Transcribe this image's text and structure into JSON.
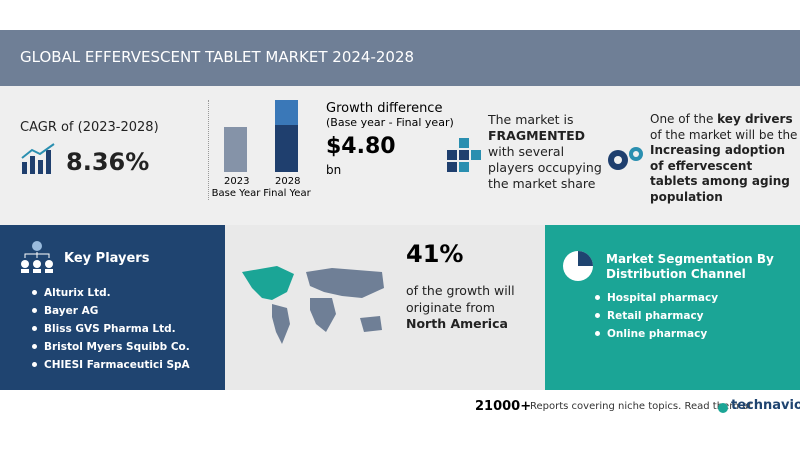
{
  "header": {
    "title": "GLOBAL EFFERVESCENT TABLET MARKET 2024-2028"
  },
  "cagr": {
    "label": "CAGR of (2023-2028)",
    "value": "8.36%"
  },
  "growth": {
    "base_year": "2023",
    "base_label": "Base Year",
    "final_year": "2028",
    "final_label": "Final Year",
    "title": "Growth difference",
    "subtitle": "(Base year - Final year)",
    "value": "$4.80",
    "unit": "bn"
  },
  "market": {
    "lines": [
      "The market is",
      "FRAGMENTED",
      "with several",
      "players occupying",
      "the market share"
    ]
  },
  "drivers": {
    "lines": [
      "One of the ",
      "key drivers",
      "of the market will be the",
      "Increasing adoption",
      "of effervescent",
      "tablets among aging",
      "population"
    ]
  },
  "key_players": {
    "title": "Key Players",
    "items": [
      "Alturix Ltd.",
      "Bayer AG",
      "Bliss GVS Pharma Ltd.",
      "Bristol Myers Squibb Co.",
      "CHIESI Farmaceutici SpA"
    ]
  },
  "region": {
    "share": "41%",
    "lines": [
      "of the growth will",
      "originate from",
      "North America"
    ]
  },
  "segmentation": {
    "title_lines": [
      "Market Segmentation By",
      "Distribution Channel"
    ],
    "items": [
      "Hospital pharmacy",
      "Retail pharmacy",
      "Online pharmacy"
    ]
  },
  "footer": {
    "count": "21000+",
    "text": "Reports covering niche topics. Read them at",
    "brand": "technavio"
  }
}
